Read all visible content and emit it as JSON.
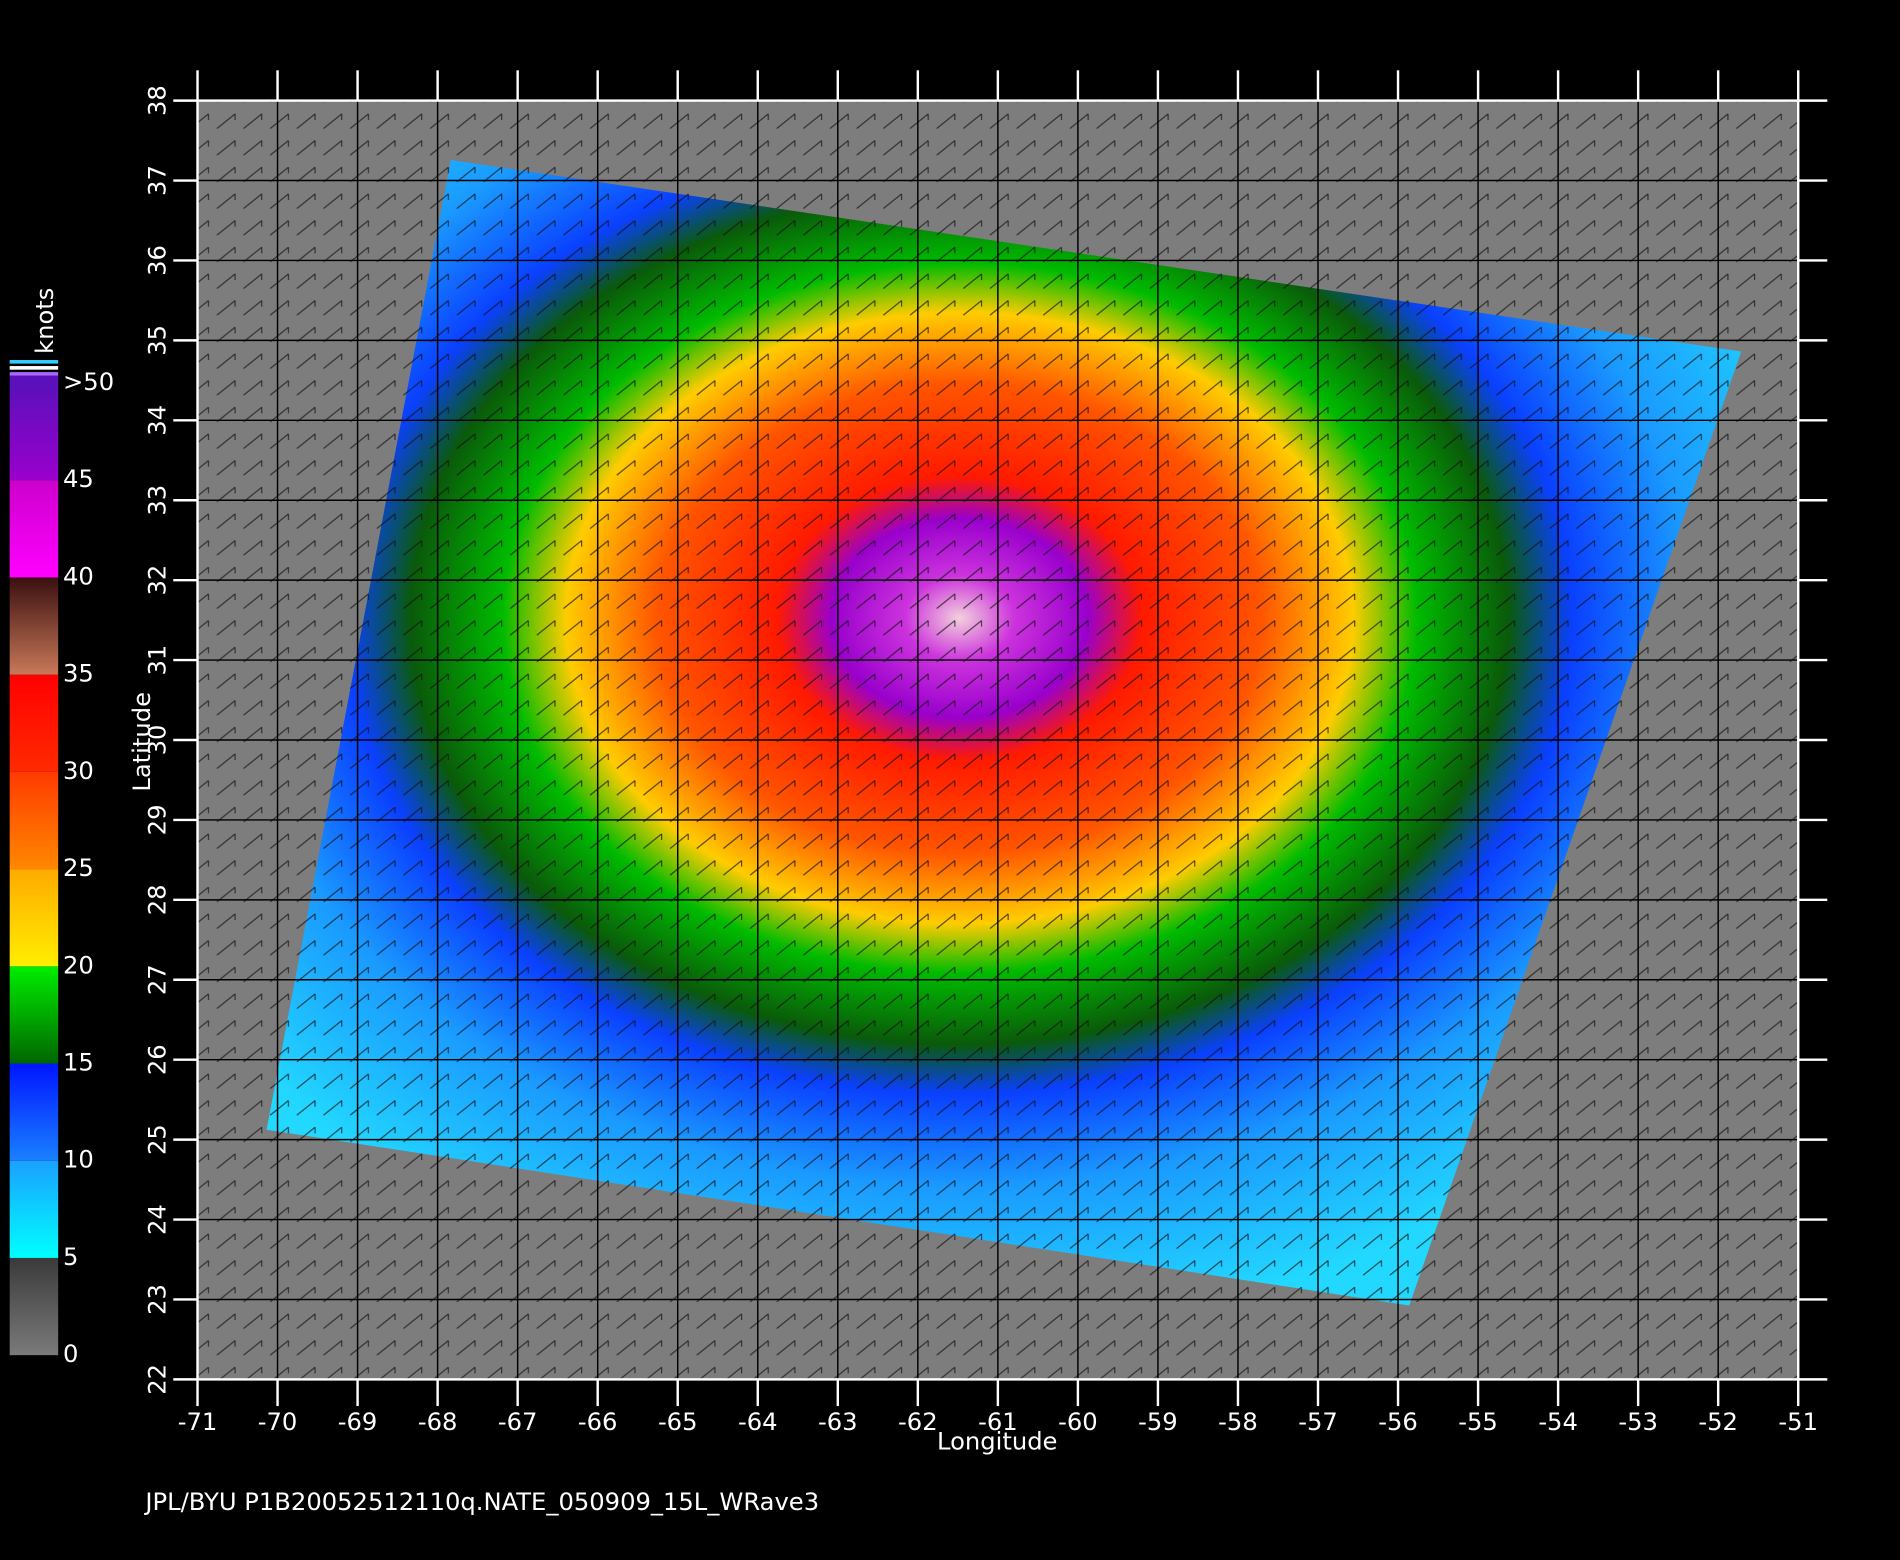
{
  "map": {
    "footer": "JPL/BYU  P1B20052512110q.NATE_050909_15L_WRave3",
    "x_label": "Longitude",
    "y_label": "Latitude",
    "xlim": [
      -71,
      -51
    ],
    "xticks": [
      -71,
      -70,
      -69,
      -68,
      -67,
      -66,
      -65,
      -64,
      -63,
      -62,
      -61,
      -60,
      -59,
      -58,
      -57,
      -56,
      -55,
      -54,
      -53,
      -52,
      -51
    ],
    "ylim": [
      22,
      38
    ],
    "yticks": [
      22,
      23,
      24,
      25,
      26,
      27,
      28,
      29,
      30,
      31,
      32,
      33,
      34,
      35,
      36,
      37,
      38
    ],
    "colorbar": {
      "label": "knots",
      "lim": [
        0,
        50
      ],
      "ticks": [
        0,
        5,
        10,
        15,
        20,
        25,
        30,
        35,
        40,
        45,
        {
          "value": 50,
          "label": ">50"
        }
      ]
    }
  }
}
